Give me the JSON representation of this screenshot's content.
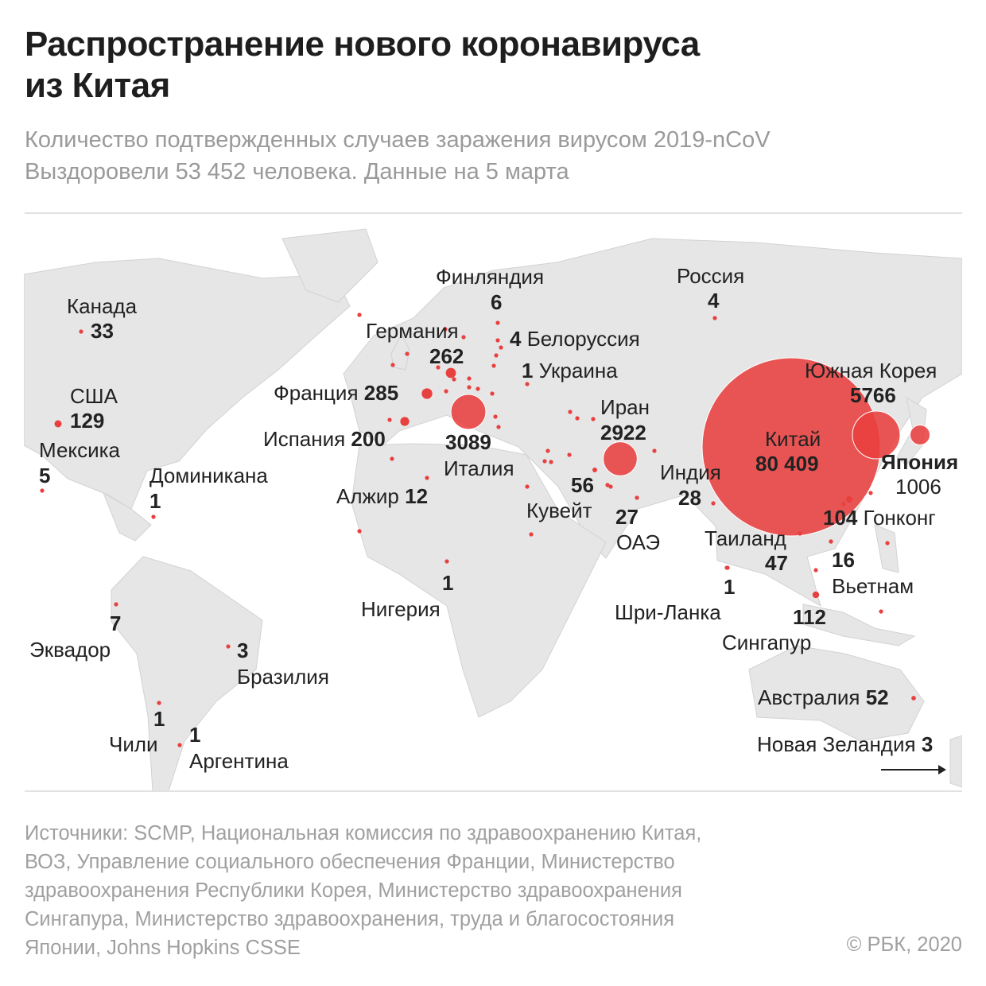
{
  "header": {
    "title_lines": [
      "Распространение нового коронавируса",
      "из Китая"
    ],
    "subtitle_lines": [
      "Количество подтвержденных случаев заражения вирусом 2019-nCoV",
      "Выздоровели 53 452 человека. Данные на 5 марта"
    ]
  },
  "colors": {
    "bubble": "#e8403f",
    "land": "#e6e6e6",
    "border": "#cfcfcf",
    "text": "#222222",
    "muted": "#9a9a9a"
  },
  "countries": [
    {
      "name": "Китай",
      "value": "80 409",
      "cases": 80409
    },
    {
      "name": "Южная Корея",
      "value": "5766",
      "cases": 5766
    },
    {
      "name": "Италия",
      "value": "3089",
      "cases": 3089
    },
    {
      "name": "Иран",
      "value": "2922",
      "cases": 2922
    },
    {
      "name": "Япония",
      "value": "1006",
      "cases": 1006
    },
    {
      "name": "Франция",
      "value": "285",
      "cases": 285
    },
    {
      "name": "Германия",
      "value": "262",
      "cases": 262
    },
    {
      "name": "Испания",
      "value": "200",
      "cases": 200
    },
    {
      "name": "США",
      "value": "129",
      "cases": 129
    },
    {
      "name": "Сингапур",
      "value": "112",
      "cases": 112
    },
    {
      "name": "Гонконг",
      "value": "104",
      "cases": 104
    },
    {
      "name": "Кувейт",
      "value": "56",
      "cases": 56
    },
    {
      "name": "Австралия",
      "value": "52",
      "cases": 52
    },
    {
      "name": "Таиланд",
      "value": "47",
      "cases": 47
    },
    {
      "name": "Канада",
      "value": "33",
      "cases": 33
    },
    {
      "name": "Индия",
      "value": "28",
      "cases": 28
    },
    {
      "name": "ОАЭ",
      "value": "27",
      "cases": 27
    },
    {
      "name": "Вьетнам",
      "value": "16",
      "cases": 16
    },
    {
      "name": "Алжир",
      "value": "12",
      "cases": 12
    },
    {
      "name": "Эквадор",
      "value": "7",
      "cases": 7
    },
    {
      "name": "Финляндия",
      "value": "6",
      "cases": 6
    },
    {
      "name": "Мексика",
      "value": "5",
      "cases": 5
    },
    {
      "name": "Россия",
      "value": "4",
      "cases": 4
    },
    {
      "name": "Белоруссия",
      "value": "4",
      "cases": 4
    },
    {
      "name": "Бразилия",
      "value": "3",
      "cases": 3
    },
    {
      "name": "Новая Зеландия",
      "value": "3",
      "cases": 3
    },
    {
      "name": "Доминикана",
      "value": "1",
      "cases": 1
    },
    {
      "name": "Украина",
      "value": "1",
      "cases": 1
    },
    {
      "name": "Нигерия",
      "value": "1",
      "cases": 1
    },
    {
      "name": "Шри-Ланка",
      "value": "1",
      "cases": 1
    },
    {
      "name": "Чили",
      "value": "1",
      "cases": 1
    },
    {
      "name": "Аргентина",
      "value": "1",
      "cases": 1
    }
  ],
  "footer": {
    "sources_lines": [
      "Источники: SCMP, Национальная комиссия по здравоохранению Китая,",
      "ВОЗ, Управление социального обеспечения Франции, Министерство",
      "здравоохранения Республики Корея, Министерство здравоохранения",
      "Сингапура, Министерство здравоохранения, труда и благосостояния",
      "Японии, Johns Hopkins CSSE"
    ],
    "copyright": "© РБК, 2020"
  }
}
